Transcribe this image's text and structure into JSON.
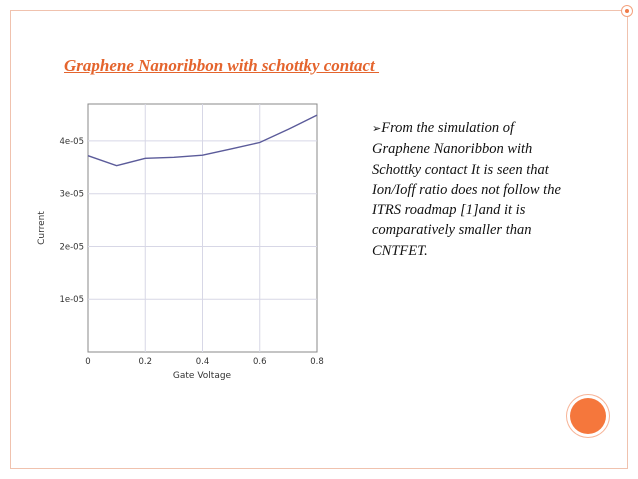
{
  "slide": {
    "title": "Graphene Nanoribbon with schottky contact ",
    "bullet_marker": "➢",
    "bullet_text": "From the simulation of Graphene Nanoribbon with Schottky contact It is seen that Ion/Ioff ratio does not follow the ITRS roadmap [1]and it is comparatively smaller than CNTFET."
  },
  "colors": {
    "title": "#e4642d",
    "accent_dot": "#f5773c",
    "border": "#f0c2ae",
    "line": "#5b5b9a"
  },
  "chart_data": {
    "type": "line",
    "xlabel": "Gate Voltage",
    "ylabel": "Current",
    "xlim": [
      0,
      0.8
    ],
    "ylim": [
      0,
      4.7e-05
    ],
    "x_ticks": [
      0,
      0.2,
      0.4,
      0.6,
      0.8
    ],
    "x_tick_labels": [
      "0",
      "0.2",
      "0.4",
      "0.6",
      "0.8"
    ],
    "y_ticks": [
      1e-05,
      2e-05,
      3e-05,
      4e-05
    ],
    "y_tick_labels": [
      "1e-05",
      "2e-05",
      "3e-05",
      "4e-05"
    ],
    "grid": true,
    "series": [
      {
        "x": [
          0,
          0.1,
          0.2,
          0.3,
          0.4,
          0.5,
          0.6,
          0.7,
          0.8
        ],
        "y": [
          3.72e-05,
          3.53e-05,
          3.67e-05,
          3.69e-05,
          3.73e-05,
          3.85e-05,
          3.97e-05,
          4.22e-05,
          4.49e-05
        ]
      }
    ]
  }
}
